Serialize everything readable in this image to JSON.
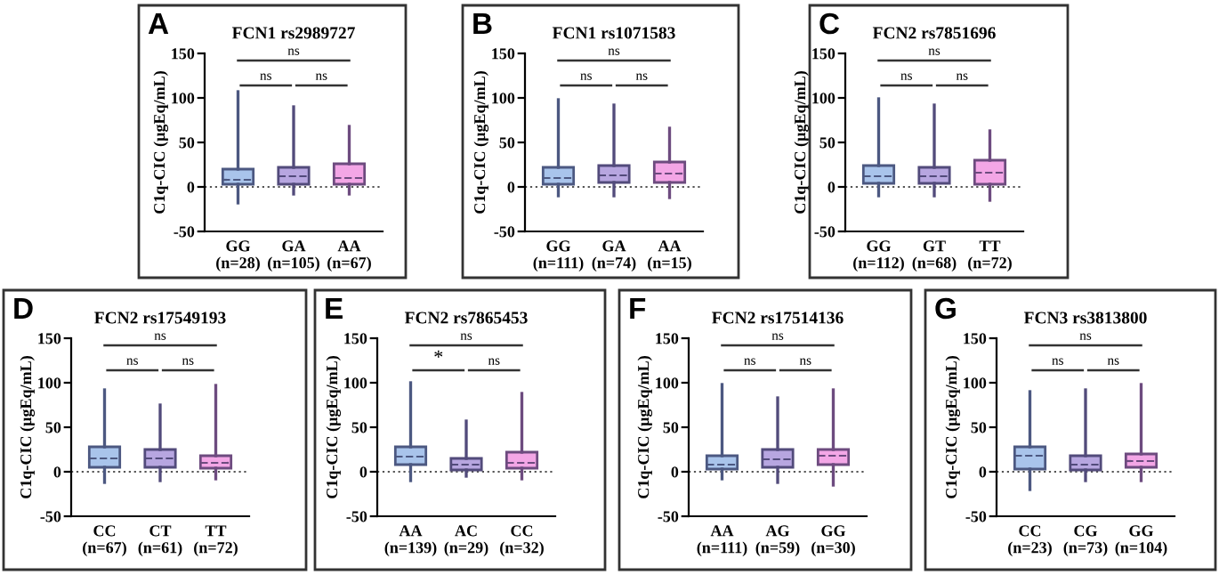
{
  "chart_data": [
    {
      "type": "box",
      "title": "FCN1 rs2989727",
      "ylabel": "C1q-CIC (µgEq/mL)",
      "categories": [
        "GG\n(n=28)",
        "GA\n(n=105)",
        "AA\n(n=67)"
      ],
      "colors": [
        "#a9c4eb",
        "#b7a6e0",
        "#f3a6e6"
      ],
      "ylim": [
        -50,
        150
      ],
      "yticks": [
        -50,
        0,
        50,
        100,
        150
      ],
      "ref_lines": [
        {
          "axis": "y",
          "value": 0,
          "line_style": "dotted"
        }
      ],
      "annotations": [
        "A",
        "ns",
        "ns",
        "ns"
      ],
      "boxes": [
        {
          "low": -18,
          "q1": 3,
          "median": 8,
          "q3": 20,
          "high": 107
        },
        {
          "low": -8,
          "q1": 3,
          "median": 12,
          "q3": 22,
          "high": 90
        },
        {
          "low": -8,
          "q1": 3,
          "median": 10,
          "q3": 26,
          "high": 68
        }
      ]
    },
    {
      "type": "box",
      "title": "FCN1 rs1071583",
      "ylabel": "C1q-CIC (µgEq/mL)",
      "categories": [
        "GG\n(n=111)",
        "GA\n(n=74)",
        "AA\n(n=15)"
      ],
      "colors": [
        "#a9c4eb",
        "#b7a6e0",
        "#f3a6e6"
      ],
      "ylim": [
        -50,
        150
      ],
      "yticks": [
        -50,
        0,
        50,
        100,
        150
      ],
      "ref_lines": [
        {
          "axis": "y",
          "value": 0,
          "line_style": "dotted"
        }
      ],
      "annotations": [
        "B",
        "ns",
        "ns",
        "ns"
      ],
      "boxes": [
        {
          "low": -10,
          "q1": 3,
          "median": 10,
          "q3": 22,
          "high": 98
        },
        {
          "low": -10,
          "q1": 5,
          "median": 13,
          "q3": 24,
          "high": 92
        },
        {
          "low": -12,
          "q1": 5,
          "median": 15,
          "q3": 28,
          "high": 66
        }
      ]
    },
    {
      "type": "box",
      "title": "FCN2 rs7851696",
      "ylabel": "C1q-CIC (µgEq/mL)",
      "categories": [
        "GG\n(n=112)",
        "GT\n(n=68)",
        "TT\n(n=72)"
      ],
      "colors": [
        "#a9c4eb",
        "#b7a6e0",
        "#f3a6e6"
      ],
      "ylim": [
        -50,
        150
      ],
      "yticks": [
        -50,
        0,
        50,
        100,
        150
      ],
      "ref_lines": [
        {
          "axis": "y",
          "value": 0,
          "line_style": "dotted"
        }
      ],
      "annotations": [
        "C",
        "ns",
        "ns",
        "ns"
      ],
      "boxes": [
        {
          "low": -10,
          "q1": 4,
          "median": 12,
          "q3": 24,
          "high": 99
        },
        {
          "low": -10,
          "q1": 4,
          "median": 12,
          "q3": 22,
          "high": 92
        },
        {
          "low": -15,
          "q1": 3,
          "median": 16,
          "q3": 30,
          "high": 63
        }
      ]
    },
    {
      "type": "box",
      "title": "FCN2 rs17549193",
      "ylabel": "C1q-CIC (µgEq/mL)",
      "categories": [
        "CC\n(n=67)",
        "CT\n(n=61)",
        "TT\n(n=72)"
      ],
      "colors": [
        "#a9c4eb",
        "#b7a6e0",
        "#f3a6e6"
      ],
      "ylim": [
        -50,
        150
      ],
      "yticks": [
        -50,
        0,
        50,
        100,
        150
      ],
      "ref_lines": [
        {
          "axis": "y",
          "value": 0,
          "line_style": "dotted"
        }
      ],
      "annotations": [
        "D",
        "ns",
        "ns",
        "ns"
      ],
      "boxes": [
        {
          "low": -12,
          "q1": 5,
          "median": 15,
          "q3": 28,
          "high": 92
        },
        {
          "low": -10,
          "q1": 5,
          "median": 15,
          "q3": 25,
          "high": 75
        },
        {
          "low": -8,
          "q1": 4,
          "median": 10,
          "q3": 18,
          "high": 97
        }
      ]
    },
    {
      "type": "box",
      "title": "FCN2 rs7865453",
      "ylabel": "C1q-CIC (µgEq/mL)",
      "categories": [
        "AA\n(n=139)",
        "AC\n(n=29)",
        "CC\n(n=32)"
      ],
      "colors": [
        "#a9c4eb",
        "#b7a6e0",
        "#f3a6e6"
      ],
      "ylim": [
        -50,
        150
      ],
      "yticks": [
        -50,
        0,
        50,
        100,
        150
      ],
      "ref_lines": [
        {
          "axis": "y",
          "value": 0,
          "line_style": "dotted"
        }
      ],
      "annotations": [
        "E",
        "ns",
        "*",
        "ns"
      ],
      "boxes": [
        {
          "low": -10,
          "q1": 8,
          "median": 17,
          "q3": 28,
          "high": 100
        },
        {
          "low": -5,
          "q1": 2,
          "median": 8,
          "q3": 15,
          "high": 57
        },
        {
          "low": -8,
          "q1": 4,
          "median": 10,
          "q3": 22,
          "high": 88
        }
      ]
    },
    {
      "type": "box",
      "title": "FCN2 rs17514136",
      "ylabel": "C1q-CIC (µgEq/mL)",
      "categories": [
        "AA\n(n=111)",
        "AG\n(n=59)",
        "GG\n(n=30)"
      ],
      "colors": [
        "#a9c4eb",
        "#b7a6e0",
        "#f3a6e6"
      ],
      "ylim": [
        -50,
        150
      ],
      "yticks": [
        -50,
        0,
        50,
        100,
        150
      ],
      "ref_lines": [
        {
          "axis": "y",
          "value": 0,
          "line_style": "dotted"
        }
      ],
      "annotations": [
        "F",
        "ns",
        "ns",
        "ns"
      ],
      "boxes": [
        {
          "low": -8,
          "q1": 3,
          "median": 8,
          "q3": 18,
          "high": 98
        },
        {
          "low": -12,
          "q1": 5,
          "median": 14,
          "q3": 25,
          "high": 83
        },
        {
          "low": -15,
          "q1": 8,
          "median": 18,
          "q3": 25,
          "high": 92
        }
      ]
    },
    {
      "type": "box",
      "title": "FCN3 rs3813800",
      "ylabel": "C1q-CIC (µgEq/mL)",
      "categories": [
        "CC\n(n=23)",
        "CG\n(n=73)",
        "GG\n(n=104)"
      ],
      "colors": [
        "#a9c4eb",
        "#b7a6e0",
        "#f3a6e6"
      ],
      "ylim": [
        -50,
        150
      ],
      "yticks": [
        -50,
        0,
        50,
        100,
        150
      ],
      "ref_lines": [
        {
          "axis": "y",
          "value": 0,
          "line_style": "dotted"
        }
      ],
      "annotations": [
        "G",
        "ns",
        "ns",
        "ns"
      ],
      "boxes": [
        {
          "low": -20,
          "q1": 3,
          "median": 18,
          "q3": 28,
          "high": 90
        },
        {
          "low": -10,
          "q1": 2,
          "median": 8,
          "q3": 18,
          "high": 92
        },
        {
          "low": -10,
          "q1": 5,
          "median": 12,
          "q3": 20,
          "high": 98
        }
      ]
    }
  ]
}
